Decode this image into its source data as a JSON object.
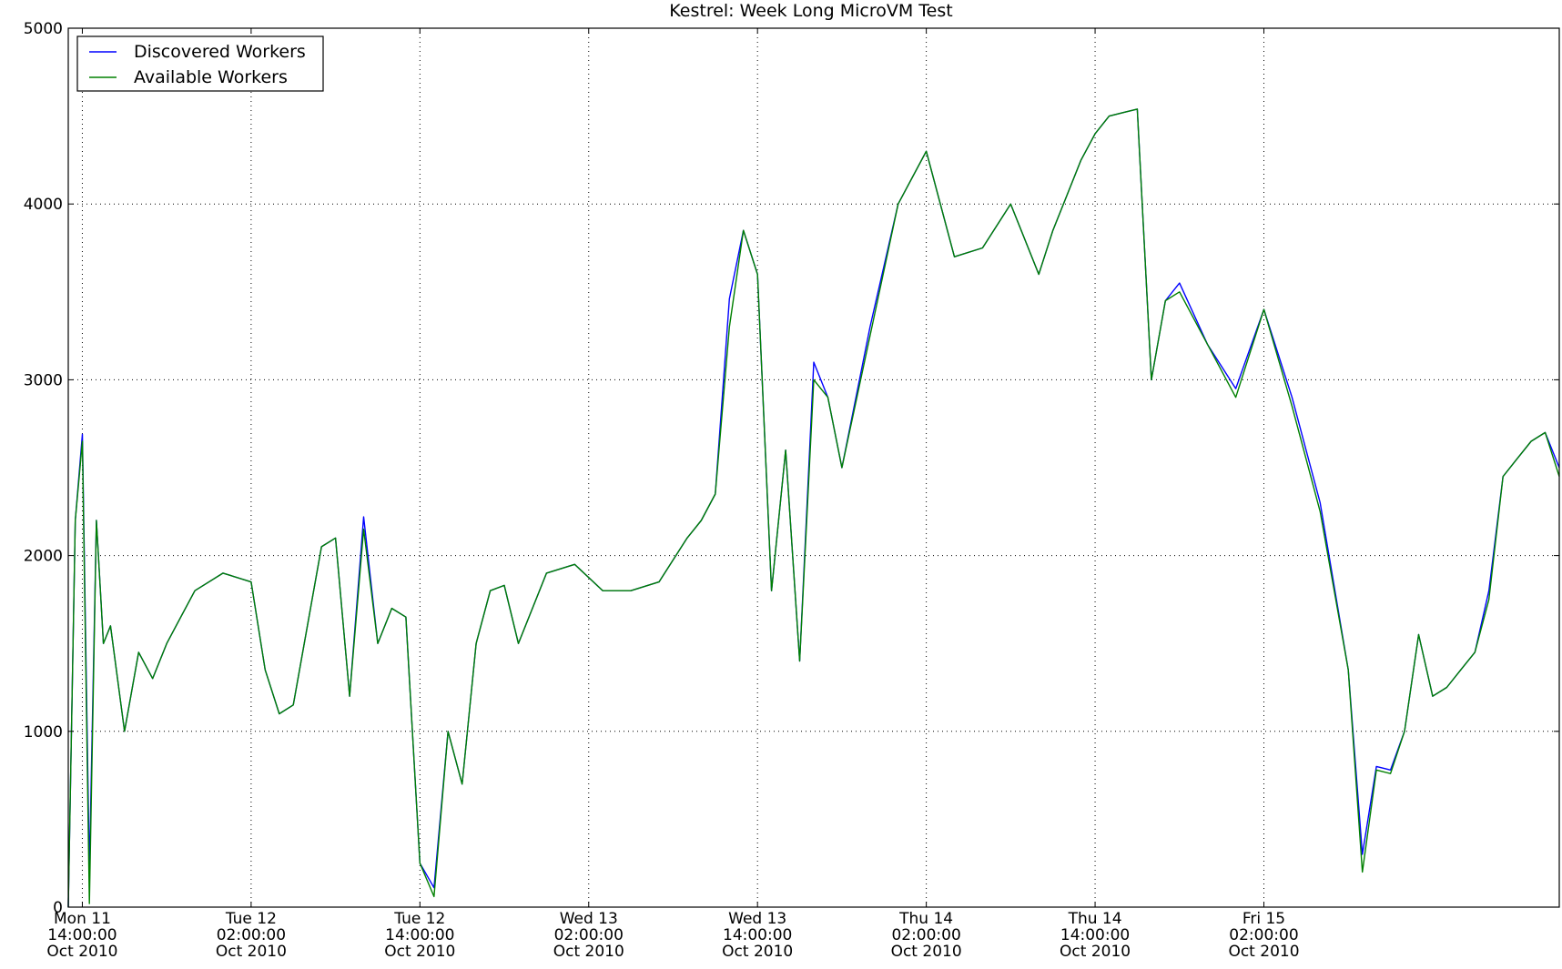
{
  "chart_data": {
    "type": "line",
    "title": "Kestrel: Week Long MicroVM Test",
    "xlabel": "",
    "ylabel": "",
    "ylim": [
      0,
      5000
    ],
    "xlim": [
      "2010-10-11 13:00",
      "2010-10-15 23:00"
    ],
    "y_ticks": [
      "0",
      "1000",
      "2000",
      "3000",
      "4000",
      "5000"
    ],
    "x_ticks": [
      {
        "time": "2010-10-11 14:00",
        "label": [
          "Mon 11",
          "14:00:00",
          "Oct 2010"
        ]
      },
      {
        "time": "2010-10-12 02:00",
        "label": [
          "Tue 12",
          "02:00:00",
          "Oct 2010"
        ]
      },
      {
        "time": "2010-10-12 14:00",
        "label": [
          "Tue 12",
          "14:00:00",
          "Oct 2010"
        ]
      },
      {
        "time": "2010-10-13 02:00",
        "label": [
          "Wed 13",
          "02:00:00",
          "Oct 2010"
        ]
      },
      {
        "time": "2010-10-13 14:00",
        "label": [
          "Wed 13",
          "14:00:00",
          "Oct 2010"
        ]
      },
      {
        "time": "2010-10-14 02:00",
        "label": [
          "Thu 14",
          "02:00:00",
          "Oct 2010"
        ]
      },
      {
        "time": "2010-10-14 14:00",
        "label": [
          "Thu 14",
          "14:00:00",
          "Oct 2010"
        ]
      },
      {
        "time": "2010-10-15 02:00",
        "label": [
          "Fri 15",
          "02:00:00",
          "Oct 2010"
        ]
      }
    ],
    "grid": true,
    "legend_position": "top-left",
    "x": [
      "2010-10-11 13:00",
      "2010-10-11 13:30",
      "2010-10-11 14:00",
      "2010-10-11 14:30",
      "2010-10-11 15:00",
      "2010-10-11 15:30",
      "2010-10-11 16:00",
      "2010-10-11 17:00",
      "2010-10-11 18:00",
      "2010-10-11 19:00",
      "2010-10-11 20:00",
      "2010-10-11 21:00",
      "2010-10-11 22:00",
      "2010-10-12 00:00",
      "2010-10-12 02:00",
      "2010-10-12 03:00",
      "2010-10-12 04:00",
      "2010-10-12 05:00",
      "2010-10-12 06:00",
      "2010-10-12 07:00",
      "2010-10-12 08:00",
      "2010-10-12 09:00",
      "2010-10-12 10:00",
      "2010-10-12 11:00",
      "2010-10-12 12:00",
      "2010-10-12 13:00",
      "2010-10-12 14:00",
      "2010-10-12 15:00",
      "2010-10-12 16:00",
      "2010-10-12 17:00",
      "2010-10-12 18:00",
      "2010-10-12 19:00",
      "2010-10-12 20:00",
      "2010-10-12 21:00",
      "2010-10-12 23:00",
      "2010-10-13 01:00",
      "2010-10-13 03:00",
      "2010-10-13 05:00",
      "2010-10-13 07:00",
      "2010-10-13 09:00",
      "2010-10-13 10:00",
      "2010-10-13 11:00",
      "2010-10-13 12:00",
      "2010-10-13 13:00",
      "2010-10-13 14:00",
      "2010-10-13 15:00",
      "2010-10-13 16:00",
      "2010-10-13 17:00",
      "2010-10-13 18:00",
      "2010-10-13 19:00",
      "2010-10-13 20:00",
      "2010-10-13 22:00",
      "2010-10-14 00:00",
      "2010-10-14 02:00",
      "2010-10-14 04:00",
      "2010-10-14 06:00",
      "2010-10-14 08:00",
      "2010-10-14 10:00",
      "2010-10-14 11:00",
      "2010-10-14 12:00",
      "2010-10-14 13:00",
      "2010-10-14 14:00",
      "2010-10-14 15:00",
      "2010-10-14 16:00",
      "2010-10-14 17:00",
      "2010-10-14 18:00",
      "2010-10-14 19:00",
      "2010-10-14 20:00",
      "2010-10-14 22:00",
      "2010-10-15 00:00",
      "2010-10-15 02:00",
      "2010-10-15 04:00",
      "2010-10-15 06:00",
      "2010-10-15 08:00",
      "2010-10-15 09:00",
      "2010-10-15 10:00",
      "2010-10-15 11:00",
      "2010-10-15 12:00",
      "2010-10-15 13:00",
      "2010-10-15 14:00",
      "2010-10-15 15:00",
      "2010-10-15 16:00",
      "2010-10-15 17:00",
      "2010-10-15 18:00",
      "2010-10-15 19:00",
      "2010-10-15 20:00",
      "2010-10-15 21:00",
      "2010-10-15 22:00",
      "2010-10-15 23:00"
    ],
    "series": [
      {
        "name": "Discovered Workers",
        "color": "#0000ff",
        "values": [
          0,
          2200,
          2690,
          200,
          2200,
          1500,
          1600,
          1000,
          1450,
          1300,
          1500,
          1650,
          1800,
          1900,
          1850,
          1350,
          1100,
          1150,
          1600,
          2050,
          2100,
          1200,
          2220,
          1500,
          1700,
          1650,
          250,
          110,
          1000,
          700,
          1500,
          1800,
          1830,
          1500,
          1900,
          1950,
          1800,
          1800,
          1850,
          2100,
          2200,
          2350,
          3460,
          3850,
          3600,
          1800,
          2600,
          1400,
          3100,
          2900,
          2500,
          3300,
          4000,
          4300,
          3700,
          3750,
          4000,
          3600,
          3850,
          4050,
          4250,
          4400,
          4500,
          4520,
          4540,
          3000,
          3450,
          3550,
          3200,
          2950,
          3400,
          2900,
          2300,
          1350,
          300,
          800,
          780,
          1000,
          1550,
          1200,
          1250,
          1350,
          1450,
          1800,
          2450,
          2550,
          2650,
          2700,
          2500
        ]
      },
      {
        "name": "Available Workers",
        "color": "#008000",
        "values": [
          0,
          2200,
          2650,
          20,
          2200,
          1500,
          1600,
          1000,
          1450,
          1300,
          1500,
          1650,
          1800,
          1900,
          1850,
          1350,
          1100,
          1150,
          1600,
          2050,
          2100,
          1200,
          2150,
          1500,
          1700,
          1650,
          250,
          60,
          1000,
          700,
          1500,
          1800,
          1830,
          1500,
          1900,
          1950,
          1800,
          1800,
          1850,
          2100,
          2200,
          2350,
          3300,
          3850,
          3600,
          1800,
          2600,
          1400,
          3000,
          2900,
          2500,
          3250,
          4000,
          4300,
          3700,
          3750,
          4000,
          3600,
          3850,
          4050,
          4250,
          4400,
          4500,
          4520,
          4540,
          3000,
          3450,
          3500,
          3200,
          2900,
          3400,
          2850,
          2250,
          1350,
          200,
          780,
          760,
          1000,
          1550,
          1200,
          1250,
          1350,
          1450,
          1750,
          2450,
          2550,
          2650,
          2700,
          2450
        ]
      }
    ]
  }
}
